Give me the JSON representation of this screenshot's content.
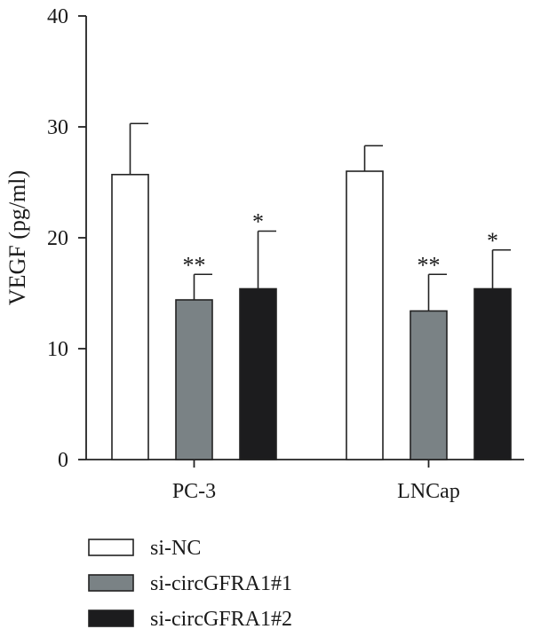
{
  "chart_data": {
    "type": "bar",
    "title": "",
    "xlabel": "",
    "ylabel": "VEGF (pg/ml)",
    "ylim": [
      0,
      40
    ],
    "yticks": [
      "0",
      "10",
      "20",
      "30",
      "40"
    ],
    "grid": false,
    "legend_position": "bottom-left",
    "categories": [
      "PC-3",
      "LNCap"
    ],
    "series": [
      {
        "name": "si-NC",
        "values": [
          25.7,
          26.0
        ],
        "errors": [
          4.6,
          2.3
        ],
        "significance": [
          "",
          ""
        ],
        "fill": "#ffffff"
      },
      {
        "name": "si-circGFRA1#1",
        "values": [
          14.4,
          13.4
        ],
        "errors": [
          2.3,
          3.3
        ],
        "significance": [
          "**",
          "**"
        ],
        "fill": "#7a8285"
      },
      {
        "name": "si-circGFRA1#2",
        "values": [
          15.4,
          15.4
        ],
        "errors": [
          5.2,
          3.5
        ],
        "significance": [
          "*",
          "*"
        ],
        "fill": "#1c1c1e"
      }
    ]
  }
}
